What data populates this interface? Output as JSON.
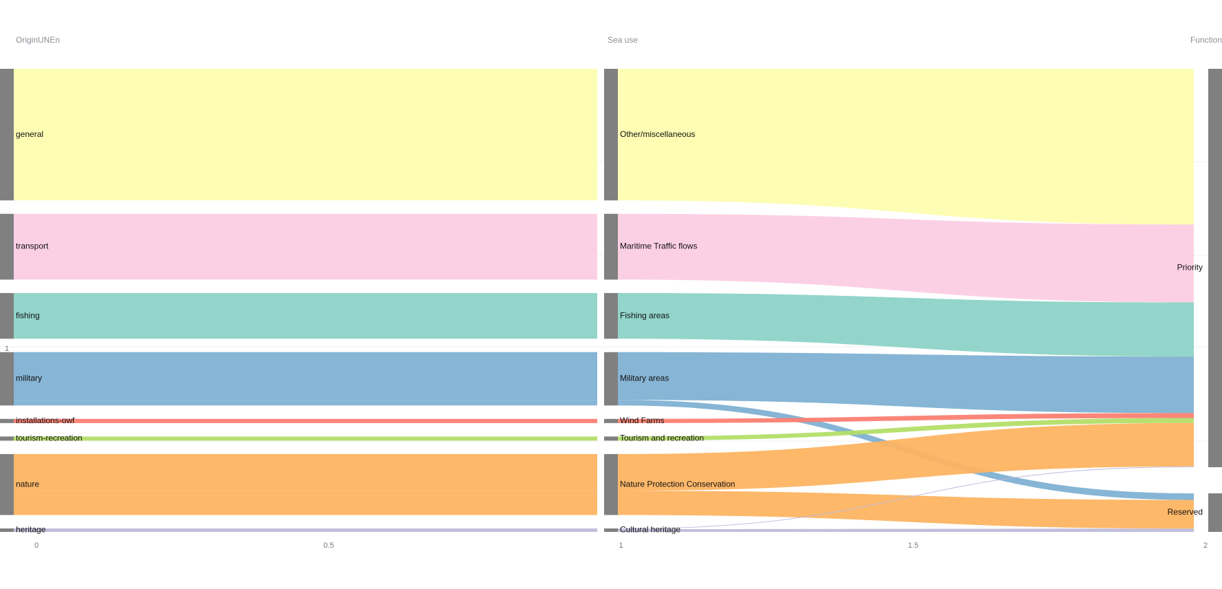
{
  "chart_data": {
    "type": "sankey",
    "dimensions": [
      {
        "key": "origin",
        "label": "OriginUNEn"
      },
      {
        "key": "sea_use",
        "label": "Sea use"
      },
      {
        "key": "function",
        "label": "Function"
      }
    ],
    "x_ticks": [
      "0",
      "0.5",
      "1",
      "1.5",
      "2"
    ],
    "y_ticks": [
      "1"
    ],
    "nodes": {
      "origin": [
        "general",
        "transport",
        "fishing",
        "military",
        "installations-owf",
        "tourism-recreation",
        "nature",
        "heritage"
      ],
      "sea_use": [
        "Other/miscellaneous",
        "Maritime Traffic flows",
        "Fishing areas",
        "Military areas",
        "Wind Farms",
        "Tourism and recreation",
        "Nature Protection Conservation",
        "Cultural heritage"
      ],
      "function": [
        "Priority",
        "Reserved"
      ]
    },
    "flows": [
      {
        "origin": "general",
        "sea_use": "Other/miscellaneous",
        "function": "Priority",
        "value": 19,
        "color": "#fdfdb0"
      },
      {
        "origin": "transport",
        "sea_use": "Maritime Traffic flows",
        "function": "Priority",
        "value": 9.5,
        "color": "#fbcde4"
      },
      {
        "origin": "fishing",
        "sea_use": "Fishing areas",
        "function": "Priority",
        "value": 6.6,
        "color": "#8dd3c7"
      },
      {
        "origin": "military",
        "sea_use": "Military areas",
        "function": "Priority",
        "value": 6.9,
        "color": "#80b1d3"
      },
      {
        "origin": "military",
        "sea_use": "Military areas",
        "function": "Reserved",
        "value": 0.8,
        "color": "#80b1d3"
      },
      {
        "origin": "installations-owf",
        "sea_use": "Wind Farms",
        "function": "Priority",
        "value": 0.6,
        "color": "#fb8072"
      },
      {
        "origin": "tourism-recreation",
        "sea_use": "Tourism and recreation",
        "function": "Priority",
        "value": 0.6,
        "color": "#b3de69"
      },
      {
        "origin": "nature",
        "sea_use": "Nature Protection Conservation",
        "function": "Priority",
        "value": 5.3,
        "color": "#fdb462"
      },
      {
        "origin": "nature",
        "sea_use": "Nature Protection Conservation",
        "function": "Reserved",
        "value": 3.5,
        "color": "#fdb462"
      },
      {
        "origin": "heritage",
        "sea_use": "Cultural heritage",
        "function": "Priority",
        "value": 0.1,
        "color": "#bebada"
      },
      {
        "origin": "heritage",
        "sea_use": "Cultural heritage",
        "function": "Reserved",
        "value": 0.4,
        "color": "#bebada"
      }
    ],
    "node_color": "#808080"
  }
}
